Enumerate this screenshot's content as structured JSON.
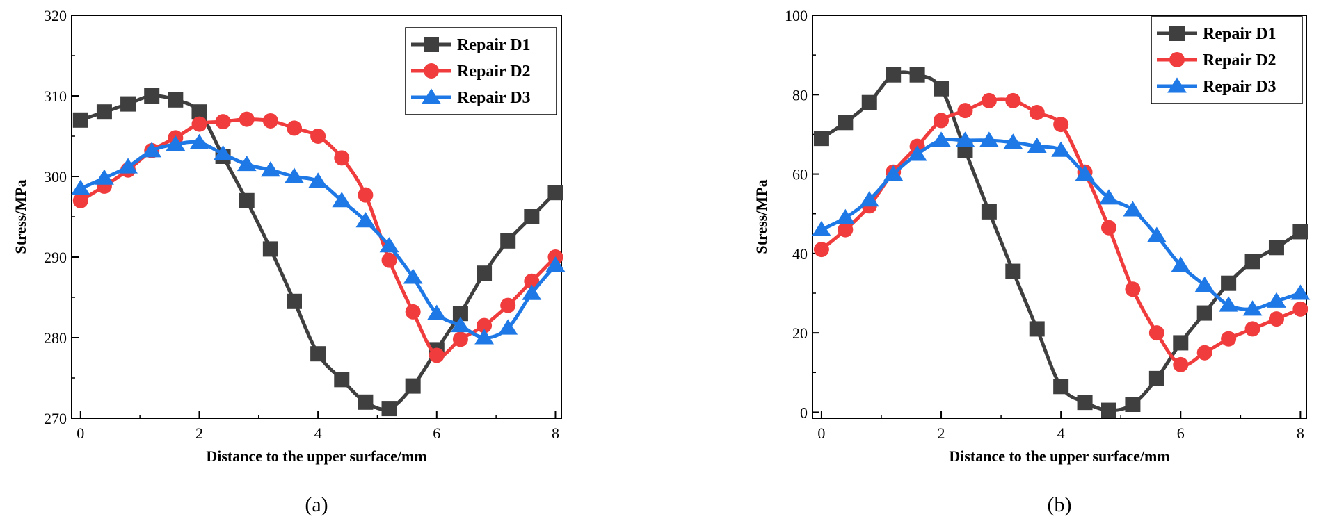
{
  "colors": {
    "series": [
      "#3f3f3f",
      "#f03c3c",
      "#1e78e6"
    ]
  },
  "chart_data": [
    {
      "type": "line",
      "caption": "(a)",
      "xlabel": "Distance to the upper surface/mm",
      "ylabel": "Stress/MPa",
      "xlim": [
        -0.15,
        8.1
      ],
      "ylim": [
        270,
        320
      ],
      "xticks": [
        0,
        2,
        4,
        6,
        8
      ],
      "yticks": [
        270,
        280,
        290,
        300,
        310,
        320
      ],
      "legend": "top-right",
      "x": [
        0,
        0.4,
        0.8,
        1.2,
        1.6,
        2.0,
        2.4,
        2.8,
        3.2,
        3.6,
        4.0,
        4.4,
        4.8,
        5.2,
        5.6,
        6.0,
        6.4,
        6.8,
        7.2,
        7.6,
        8.0
      ],
      "series": [
        {
          "name": "Repair D1",
          "marker": "square",
          "values": [
            307,
            308,
            309,
            310,
            309.5,
            308,
            302.5,
            297,
            291,
            284.5,
            278,
            274.8,
            272,
            271.2,
            274,
            278.5,
            283,
            288,
            292,
            295,
            298
          ]
        },
        {
          "name": "Repair D2",
          "marker": "circle",
          "values": [
            297,
            298.8,
            300.8,
            303.2,
            304.8,
            306.5,
            306.8,
            307.1,
            306.9,
            306,
            305,
            302.3,
            297.7,
            289.6,
            283.2,
            277.8,
            279.8,
            281.5,
            284,
            287,
            290
          ]
        },
        {
          "name": "Repair D3",
          "marker": "triangle",
          "values": [
            298.5,
            299.8,
            301.2,
            303.2,
            304,
            304.2,
            302.8,
            301.5,
            300.8,
            300,
            299.4,
            297,
            294.5,
            291.4,
            287.5,
            283,
            281.5,
            280,
            281.2,
            285.5,
            289
          ]
        }
      ]
    },
    {
      "type": "line",
      "caption": "(b)",
      "xlabel": "Distance to the upper surface/mm",
      "ylabel": "Stress/MPa",
      "xlim": [
        -0.15,
        8.1
      ],
      "ylim": [
        -1.5,
        100
      ],
      "xticks": [
        0,
        2,
        4,
        6,
        8
      ],
      "yticks": [
        0,
        20,
        40,
        60,
        80,
        100
      ],
      "legend": "top-right",
      "x": [
        0,
        0.4,
        0.8,
        1.2,
        1.6,
        2.0,
        2.4,
        2.8,
        3.2,
        3.6,
        4.0,
        4.4,
        4.8,
        5.2,
        5.6,
        6.0,
        6.4,
        6.8,
        7.2,
        7.6,
        8.0
      ],
      "series": [
        {
          "name": "Repair D1",
          "marker": "square",
          "values": [
            69,
            73,
            78,
            85,
            85,
            81.5,
            66,
            50.5,
            35.5,
            21,
            6.5,
            2.5,
            0.5,
            2,
            8.5,
            17.5,
            25,
            32.5,
            38,
            41.5,
            45.5
          ]
        },
        {
          "name": "Repair D2",
          "marker": "circle",
          "values": [
            41,
            46,
            52,
            60.5,
            67,
            73.5,
            76,
            78.5,
            78.5,
            75.5,
            72.5,
            60.5,
            46.5,
            31,
            20,
            12,
            15,
            18.5,
            21,
            23.5,
            26
          ]
        },
        {
          "name": "Repair D3",
          "marker": "triangle",
          "values": [
            46,
            49,
            53.5,
            60,
            65,
            68.5,
            68.5,
            68.5,
            68,
            67,
            66,
            60,
            54,
            51,
            44.5,
            37,
            32,
            27,
            26,
            28,
            30
          ]
        }
      ]
    }
  ]
}
